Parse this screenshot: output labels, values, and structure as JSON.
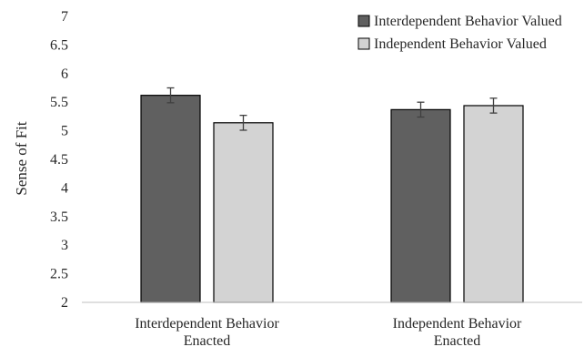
{
  "chart_data": {
    "type": "bar",
    "title": "",
    "xlabel": "",
    "ylabel": "Sense of Fit",
    "ylim": [
      2,
      7
    ],
    "yticks": [
      2,
      2.5,
      3,
      3.5,
      4,
      4.5,
      5,
      5.5,
      6,
      6.5,
      7
    ],
    "grid": false,
    "legend_position": "top-right",
    "categories": [
      [
        "Interdependent Behavior",
        "Enacted"
      ],
      [
        "Independent Behavior",
        "Enacted"
      ]
    ],
    "series": [
      {
        "name": "Interdependent Behavior Valued",
        "color": "#606060",
        "values": [
          5.62,
          5.37
        ],
        "errors": [
          0.13,
          0.13
        ]
      },
      {
        "name": "Independent Behavior Valued",
        "color": "#d3d3d3",
        "values": [
          5.14,
          5.44
        ],
        "errors": [
          0.13,
          0.13
        ]
      }
    ]
  }
}
